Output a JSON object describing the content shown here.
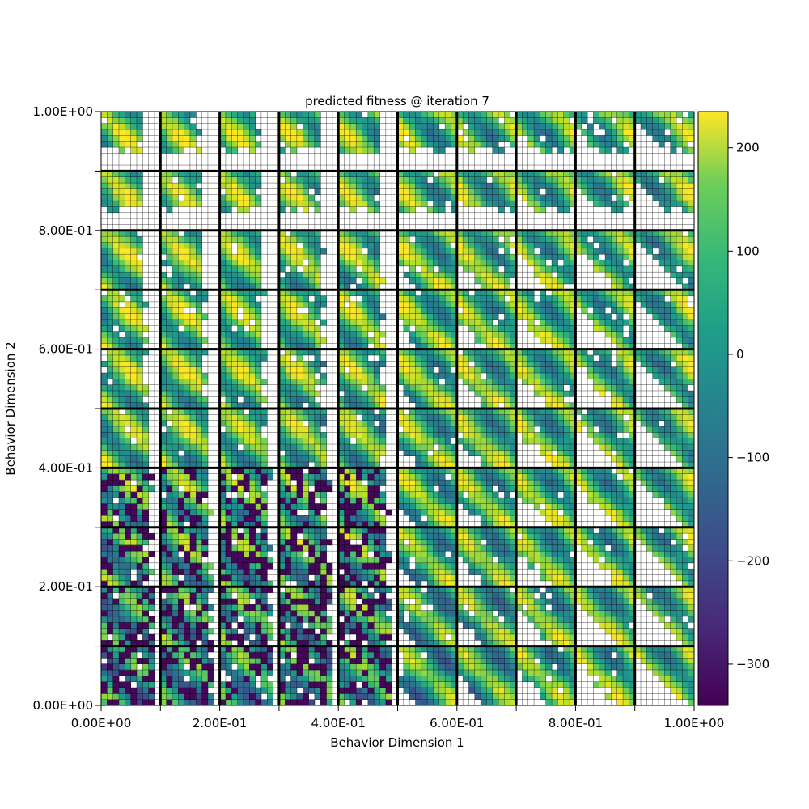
{
  "chart_data": {
    "type": "heatmap",
    "title": "predicted fitness @ iteration 7",
    "xlabel": "Behavior Dimension 1",
    "ylabel": "Behavior Dimension 2",
    "xlim": [
      0,
      1
    ],
    "ylim": [
      0,
      1
    ],
    "x_tick_labels": [
      {
        "value": 0.0,
        "label": "0.00E+00"
      },
      {
        "value": 0.2,
        "label": "2.00E-01"
      },
      {
        "value": 0.4,
        "label": "4.00E-01"
      },
      {
        "value": 0.6,
        "label": "6.00E-01"
      },
      {
        "value": 0.8,
        "label": "8.00E-01"
      },
      {
        "value": 1.0,
        "label": "1.00E+00"
      }
    ],
    "y_tick_labels": [
      {
        "value": 0.0,
        "label": "0.00E+00"
      },
      {
        "value": 0.2,
        "label": "2.00E-01"
      },
      {
        "value": 0.4,
        "label": "4.00E-01"
      },
      {
        "value": 0.6,
        "label": "6.00E-01"
      },
      {
        "value": 0.8,
        "label": "8.00E-01"
      },
      {
        "value": 1.0,
        "label": "1.00E+00"
      }
    ],
    "outer_grid": [
      10,
      10
    ],
    "inner_grid": [
      10,
      10
    ],
    "colormap": "viridis",
    "color_range": [
      -340,
      235
    ],
    "colorbar_ticks": [
      {
        "value": 200,
        "label": "200"
      },
      {
        "value": 100,
        "label": "100"
      },
      {
        "value": 0,
        "label": "0"
      },
      {
        "value": -100,
        "label": "−100"
      },
      {
        "value": -200,
        "label": "−200"
      },
      {
        "value": -300,
        "label": "−300"
      }
    ],
    "empty_cell_color": "#ffffff",
    "grid_line_color": "#000000",
    "values_note": "Grid of 100x100 cells; values estimated procedurally from the visual pattern."
  }
}
